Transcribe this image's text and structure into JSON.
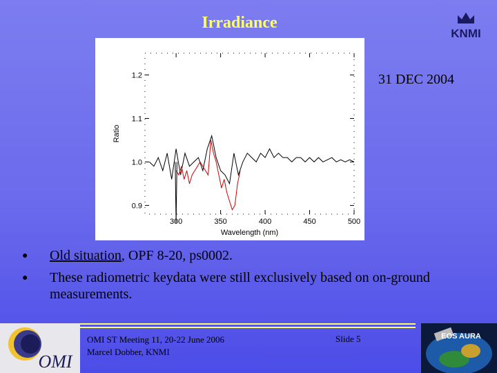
{
  "slide": {
    "title": "Irradiance",
    "date": "31 DEC 2004",
    "bullets": [
      {
        "prefix_underlined": "Old situation",
        "text": ", OPF 8-20, ps0002."
      },
      {
        "prefix_underlined": "",
        "text": "These radiometric keydata were still exclusively based on on-ground measurements."
      }
    ],
    "footer": {
      "line1": "OMI ST Meeting 11, 20-22 June 2006",
      "line2": "Marcel Dobber, KNMI",
      "slide_label": "Slide 5"
    },
    "logos": {
      "knmi": "KNMI",
      "omi": "OMI",
      "aura": "EOS AURA"
    },
    "colors": {
      "title": "#ffff66",
      "background": "#6a6aec",
      "series_red": "#cc0000",
      "series_black": "#000000"
    }
  },
  "chart_data": {
    "type": "line",
    "title": "",
    "xlabel": "Wavelength (nm)",
    "ylabel": "Ratio",
    "xlim": [
      265,
      500
    ],
    "ylim": [
      0.88,
      1.25
    ],
    "xticks": [
      300,
      350,
      400,
      450,
      500
    ],
    "xtick_labels": [
      "300",
      "350",
      "400",
      "450",
      "500"
    ],
    "yticks": [
      0.9,
      1.0,
      1.1,
      1.2
    ],
    "ytick_labels": [
      "0.9",
      "1.0",
      "1.1",
      "1.2"
    ],
    "series": [
      {
        "color": "#000000",
        "x": [
          270,
          275,
          280,
          285,
          290,
          295,
          300,
          305,
          310,
          315,
          320,
          325,
          330,
          335,
          340,
          345,
          350,
          355,
          360,
          365,
          370,
          375,
          380,
          385,
          390,
          395,
          400,
          405,
          410,
          415,
          420,
          425,
          430,
          435,
          440,
          445,
          450,
          455,
          460,
          465,
          470,
          475,
          480,
          485,
          490,
          495,
          500
        ],
        "y": [
          1.0,
          0.99,
          1.01,
          0.98,
          1.02,
          0.96,
          1.03,
          0.97,
          1.02,
          0.99,
          1.0,
          1.01,
          0.98,
          1.03,
          1.06,
          1.01,
          0.98,
          0.97,
          0.95,
          1.02,
          0.97,
          1.0,
          1.02,
          1.01,
          1.0,
          1.02,
          1.01,
          1.03,
          1.01,
          1.02,
          1.01,
          1.01,
          1.0,
          1.01,
          1.01,
          1.0,
          1.01,
          1.0,
          1.01,
          1.0,
          1.005,
          1.01,
          1.0,
          1.005,
          1.0,
          1.005,
          1.0
        ]
      },
      {
        "color": "#cc0000",
        "x": [
          300,
          303,
          306,
          309,
          312,
          315,
          318,
          321,
          324,
          327,
          330,
          333,
          336,
          339,
          342,
          345,
          348,
          351,
          354,
          357,
          360,
          363,
          366,
          369,
          372
        ],
        "y": [
          0.98,
          0.97,
          0.99,
          0.96,
          0.98,
          0.95,
          0.97,
          0.98,
          0.99,
          1.0,
          0.99,
          0.98,
          0.97,
          1.05,
          1.02,
          1.0,
          0.97,
          0.94,
          0.96,
          0.93,
          0.91,
          0.89,
          0.9,
          0.95,
          0.98
        ]
      },
      {
        "color": "#000000",
        "x": [
          299,
          300,
          301
        ],
        "y": [
          1.0,
          0.86,
          1.0
        ]
      }
    ]
  }
}
